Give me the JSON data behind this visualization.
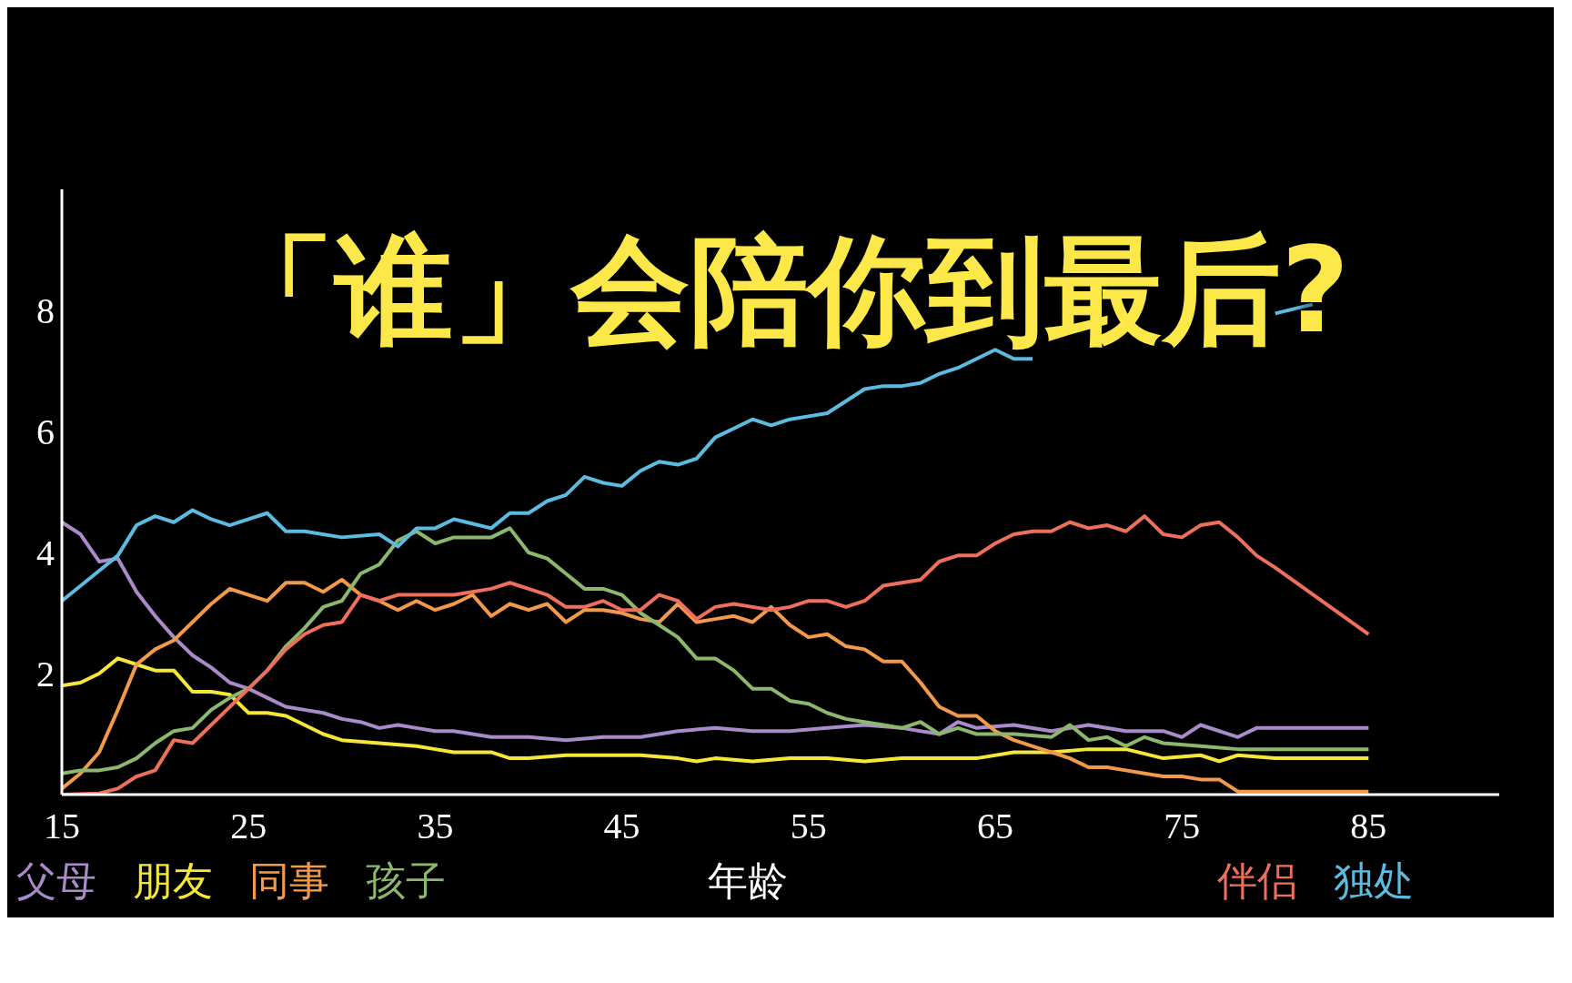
{
  "chart_data": {
    "type": "line",
    "title": "「谁」会陪你到最后?",
    "xlabel": "年龄",
    "xlim": [
      15,
      92
    ],
    "xticks": [
      15,
      25,
      35,
      45,
      55,
      65,
      75,
      85
    ],
    "ylim": [
      0,
      10
    ],
    "yticks": [
      2,
      4,
      6,
      8
    ],
    "grid": false,
    "legend": "bottom",
    "marker": "none",
    "line_style": "solid",
    "series": [
      {
        "name": "父母",
        "color": "#a98bc9",
        "x": [
          15,
          16,
          17,
          18,
          19,
          20,
          21,
          22,
          23,
          24,
          25,
          26,
          27,
          28,
          29,
          30,
          31,
          32,
          33,
          34,
          35,
          36,
          37,
          38,
          40,
          42,
          44,
          46,
          48,
          50,
          52,
          54,
          56,
          58,
          60,
          62,
          63,
          64,
          66,
          68,
          70,
          72,
          74,
          75,
          76,
          78,
          79,
          80,
          85
        ],
        "values": [
          4.5,
          4.3,
          3.85,
          3.9,
          3.35,
          2.95,
          2.6,
          2.3,
          2.1,
          1.85,
          1.75,
          1.6,
          1.45,
          1.4,
          1.35,
          1.25,
          1.2,
          1.1,
          1.15,
          1.1,
          1.05,
          1.05,
          1.0,
          0.95,
          0.95,
          0.9,
          0.95,
          0.95,
          1.05,
          1.1,
          1.05,
          1.05,
          1.1,
          1.15,
          1.1,
          1.0,
          1.2,
          1.1,
          1.15,
          1.05,
          1.15,
          1.05,
          1.05,
          0.95,
          1.15,
          0.95,
          1.1,
          1.1,
          1.1
        ]
      },
      {
        "name": "朋友",
        "color": "#f5e63a",
        "x": [
          15,
          16,
          17,
          18,
          19,
          20,
          21,
          22,
          23,
          24,
          25,
          26,
          27,
          28,
          29,
          30,
          32,
          34,
          35,
          36,
          38,
          39,
          40,
          42,
          44,
          46,
          48,
          49,
          50,
          52,
          54,
          56,
          58,
          60,
          62,
          64,
          66,
          68,
          70,
          72,
          74,
          76,
          77,
          78,
          80,
          85
        ],
        "values": [
          1.8,
          1.85,
          2.0,
          2.25,
          2.15,
          2.05,
          2.05,
          1.7,
          1.7,
          1.65,
          1.35,
          1.35,
          1.3,
          1.15,
          1.0,
          0.9,
          0.85,
          0.8,
          0.75,
          0.7,
          0.7,
          0.6,
          0.6,
          0.65,
          0.65,
          0.65,
          0.6,
          0.55,
          0.6,
          0.55,
          0.6,
          0.6,
          0.55,
          0.6,
          0.6,
          0.6,
          0.7,
          0.7,
          0.75,
          0.75,
          0.6,
          0.65,
          0.55,
          0.65,
          0.6,
          0.6
        ]
      },
      {
        "name": "同事",
        "color": "#f39a4a",
        "x": [
          15,
          16,
          17,
          18,
          19,
          20,
          21,
          22,
          23,
          24,
          25,
          26,
          27,
          28,
          29,
          30,
          31,
          32,
          33,
          34,
          35,
          36,
          37,
          38,
          39,
          40,
          41,
          42,
          43,
          44,
          45,
          46,
          47,
          48,
          49,
          50,
          51,
          52,
          53,
          54,
          55,
          56,
          57,
          58,
          59,
          60,
          61,
          62,
          63,
          64,
          65,
          66,
          67,
          68,
          69,
          70,
          71,
          72,
          73,
          74,
          75,
          76,
          77,
          78,
          85
        ],
        "values": [
          0.1,
          0.35,
          0.7,
          1.4,
          2.15,
          2.4,
          2.55,
          2.85,
          3.15,
          3.4,
          3.3,
          3.2,
          3.5,
          3.5,
          3.35,
          3.55,
          3.3,
          3.2,
          3.05,
          3.2,
          3.05,
          3.15,
          3.3,
          2.95,
          3.15,
          3.05,
          3.15,
          2.85,
          3.05,
          3.05,
          3.0,
          2.9,
          2.85,
          3.15,
          2.85,
          2.9,
          2.95,
          2.85,
          3.1,
          2.8,
          2.6,
          2.65,
          2.45,
          2.4,
          2.2,
          2.2,
          1.85,
          1.45,
          1.3,
          1.3,
          1.05,
          0.9,
          0.8,
          0.7,
          0.6,
          0.45,
          0.45,
          0.4,
          0.35,
          0.3,
          0.3,
          0.25,
          0.25,
          0.05,
          0.05
        ]
      },
      {
        "name": "孩子",
        "color": "#8cb86e",
        "x": [
          15,
          16,
          17,
          18,
          19,
          20,
          21,
          22,
          23,
          24,
          25,
          26,
          27,
          28,
          29,
          30,
          31,
          32,
          33,
          34,
          35,
          36,
          37,
          38,
          39,
          40,
          41,
          42,
          43,
          44,
          45,
          46,
          47,
          48,
          49,
          50,
          51,
          52,
          53,
          54,
          55,
          56,
          57,
          58,
          59,
          60,
          61,
          62,
          63,
          64,
          66,
          68,
          69,
          70,
          71,
          72,
          73,
          74,
          76,
          78,
          80,
          85
        ],
        "values": [
          0.35,
          0.4,
          0.4,
          0.45,
          0.6,
          0.85,
          1.05,
          1.1,
          1.4,
          1.6,
          1.75,
          2.05,
          2.45,
          2.75,
          3.1,
          3.2,
          3.65,
          3.8,
          4.2,
          4.35,
          4.15,
          4.25,
          4.25,
          4.25,
          4.4,
          4.0,
          3.9,
          3.65,
          3.4,
          3.4,
          3.3,
          3.0,
          2.8,
          2.6,
          2.25,
          2.25,
          2.05,
          1.75,
          1.75,
          1.55,
          1.5,
          1.35,
          1.25,
          1.2,
          1.15,
          1.1,
          1.2,
          1.0,
          1.1,
          1.0,
          1.0,
          0.95,
          1.15,
          0.9,
          0.95,
          0.8,
          0.95,
          0.85,
          0.8,
          0.75,
          0.75,
          0.75
        ]
      },
      {
        "name": "伴侣",
        "color": "#ee6f5c",
        "x": [
          15,
          17,
          18,
          19,
          20,
          21,
          22,
          23,
          24,
          25,
          26,
          27,
          28,
          29,
          30,
          31,
          32,
          33,
          34,
          35,
          36,
          37,
          38,
          39,
          40,
          41,
          42,
          43,
          44,
          45,
          46,
          47,
          48,
          49,
          50,
          51,
          52,
          53,
          54,
          55,
          56,
          57,
          58,
          59,
          60,
          61,
          62,
          63,
          64,
          65,
          66,
          67,
          68,
          69,
          70,
          71,
          72,
          73,
          74,
          75,
          76,
          77,
          78,
          79,
          80,
          85
        ],
        "values": [
          0.0,
          0.02,
          0.1,
          0.3,
          0.4,
          0.9,
          0.85,
          1.15,
          1.45,
          1.75,
          2.05,
          2.4,
          2.65,
          2.8,
          2.85,
          3.3,
          3.2,
          3.3,
          3.3,
          3.3,
          3.3,
          3.35,
          3.4,
          3.5,
          3.4,
          3.3,
          3.1,
          3.1,
          3.2,
          3.05,
          3.05,
          3.3,
          3.2,
          2.9,
          3.1,
          3.15,
          3.1,
          3.05,
          3.1,
          3.2,
          3.2,
          3.1,
          3.2,
          3.45,
          3.5,
          3.55,
          3.85,
          3.95,
          3.95,
          4.15,
          4.3,
          4.35,
          4.35,
          4.5,
          4.4,
          4.45,
          4.35,
          4.6,
          4.3,
          4.25,
          4.45,
          4.5,
          4.25,
          3.95,
          3.75,
          2.65
        ]
      },
      {
        "name": "独处",
        "color": "#5bbce0",
        "x": [
          15,
          17,
          18,
          19,
          20,
          21,
          22,
          23,
          24,
          25,
          26,
          27,
          28,
          30,
          32,
          33,
          34,
          35,
          36,
          38,
          39,
          40,
          41,
          42,
          43,
          44,
          45,
          46,
          47,
          48,
          49,
          50,
          51,
          52,
          53,
          54,
          55,
          56,
          57,
          58,
          59,
          60,
          61,
          62,
          63,
          64,
          65,
          66,
          67,
          68,
          80,
          82
        ],
        "values": [
          3.2,
          3.7,
          3.95,
          4.45,
          4.6,
          4.5,
          4.7,
          4.55,
          4.45,
          4.55,
          4.65,
          4.35,
          4.35,
          4.25,
          4.3,
          4.1,
          4.4,
          4.4,
          4.55,
          4.4,
          4.65,
          4.65,
          4.85,
          4.95,
          5.25,
          5.15,
          5.1,
          5.35,
          5.5,
          5.45,
          5.55,
          5.9,
          6.05,
          6.2,
          6.1,
          6.2,
          6.25,
          6.3,
          6.5,
          6.7,
          6.75,
          6.75,
          6.8,
          6.95,
          7.05,
          7.2,
          7.35,
          7.2,
          7.2,
          null,
          7.95,
          8.1
        ]
      }
    ]
  }
}
